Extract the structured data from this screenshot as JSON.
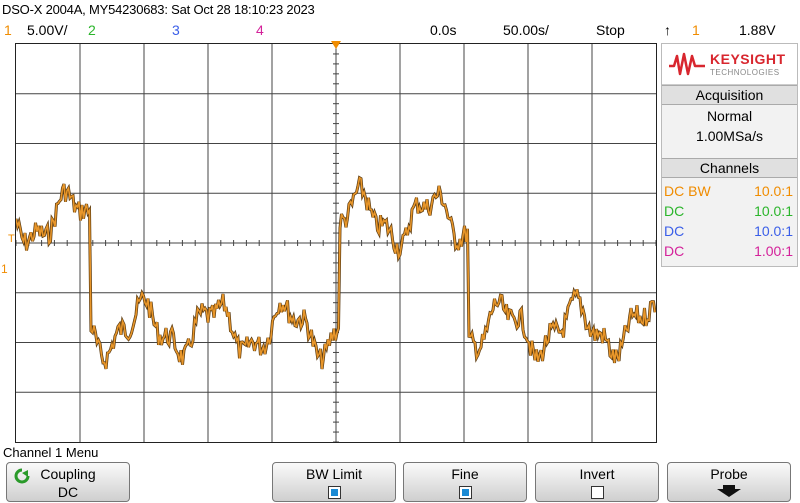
{
  "title": "DSO-X 2004A, MY54230683: Sat Oct 28 18:10:23 2023",
  "status": {
    "ch1_num": "1",
    "ch1_scale": "5.00V/",
    "ch2_num": "2",
    "ch3_num": "3",
    "ch4_num": "4",
    "time_delay": "0.0s",
    "time_scale": "50.00s/",
    "run_state": "Stop",
    "trigger_icon": "trigger-edge-icon",
    "trigger_symbol": "↑",
    "trigger_src": "1",
    "trigger_level": "1.88V"
  },
  "colors": {
    "ch1": "#f08c00",
    "ch2": "#2bb52b",
    "ch3": "#3a5ee8",
    "ch4": "#d4219a",
    "trace": "#e8962a",
    "trace_dark": "#5a3a10",
    "keysight_red": "#d8262e"
  },
  "logo": {
    "brand": "KEYSIGHT",
    "tagline": "TECHNOLOGIES"
  },
  "acquisition": {
    "header": "Acquisition",
    "mode": "Normal",
    "rate": "1.00MSa/s"
  },
  "channels": {
    "header": "Channels",
    "rows": [
      {
        "coupling": "DC BW",
        "probe": "10.0:1"
      },
      {
        "coupling": "DC",
        "probe": "10.0:1"
      },
      {
        "coupling": "DC",
        "probe": "10.0:1"
      },
      {
        "coupling": "DC",
        "probe": "1.00:1"
      }
    ]
  },
  "markers": {
    "ch1_ground": "1",
    "trigger_level": "T"
  },
  "menu": {
    "title": "Channel 1 Menu",
    "softkeys": [
      {
        "label": "Coupling",
        "value": "DC"
      },
      {
        "label": "BW Limit",
        "checked": true
      },
      {
        "label": "Fine",
        "checked": true
      },
      {
        "label": "Invert",
        "checked": false
      },
      {
        "label": "Probe"
      }
    ]
  }
}
